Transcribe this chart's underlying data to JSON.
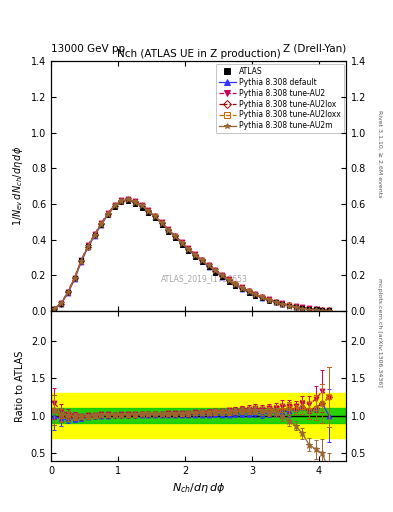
{
  "title_top_left": "13000 GeV pp",
  "title_top_right": "Z (Drell-Yan)",
  "plot_title": "Nch (ATLAS UE in Z production)",
  "xlabel": "$N_{ch}/d\\eta\\,d\\phi$",
  "ylabel_main": "$1/N_{ev}\\,dN_{ch}/d\\eta\\,d\\phi$",
  "ylabel_ratio": "Ratio to ATLAS",
  "right_label_top": "Rivet 3.1.10, ≥ 2.6M events",
  "right_label_bottom": "mcplots.cern.ch [arXiv:1306.3436]",
  "watermark": "ATLAS_2019_I1736653",
  "ylim_main": [
    0.0,
    1.4
  ],
  "ylim_ratio": [
    0.4,
    2.4
  ],
  "xlim": [
    0.0,
    4.4
  ],
  "yticks_main": [
    0.0,
    0.2,
    0.4,
    0.6,
    0.8,
    1.0,
    1.2,
    1.4
  ],
  "yticks_ratio": [
    0.5,
    1.0,
    1.5,
    2.0
  ],
  "xticks": [
    0,
    1,
    2,
    3,
    4
  ],
  "green_band": 0.1,
  "yellow_band": 0.3,
  "series": [
    {
      "label": "ATLAS",
      "color": "#000000",
      "marker": "s",
      "markersize": 3.5,
      "linestyle": "none",
      "filled": true,
      "x": [
        0.05,
        0.15,
        0.25,
        0.35,
        0.45,
        0.55,
        0.65,
        0.75,
        0.85,
        0.95,
        1.05,
        1.15,
        1.25,
        1.35,
        1.45,
        1.55,
        1.65,
        1.75,
        1.85,
        1.95,
        2.05,
        2.15,
        2.25,
        2.35,
        2.45,
        2.55,
        2.65,
        2.75,
        2.85,
        2.95,
        3.05,
        3.15,
        3.25,
        3.35,
        3.45,
        3.55,
        3.65,
        3.75,
        3.85,
        3.95,
        4.05,
        4.15
      ],
      "y": [
        0.012,
        0.042,
        0.105,
        0.185,
        0.285,
        0.365,
        0.425,
        0.485,
        0.54,
        0.585,
        0.61,
        0.615,
        0.6,
        0.58,
        0.55,
        0.52,
        0.482,
        0.445,
        0.408,
        0.372,
        0.338,
        0.305,
        0.274,
        0.245,
        0.216,
        0.19,
        0.165,
        0.143,
        0.122,
        0.103,
        0.086,
        0.072,
        0.059,
        0.048,
        0.038,
        0.03,
        0.023,
        0.017,
        0.013,
        0.009,
        0.006,
        0.004
      ],
      "yerr": [
        0.002,
        0.003,
        0.005,
        0.006,
        0.007,
        0.008,
        0.009,
        0.009,
        0.01,
        0.01,
        0.011,
        0.011,
        0.01,
        0.01,
        0.01,
        0.009,
        0.009,
        0.008,
        0.008,
        0.007,
        0.007,
        0.006,
        0.006,
        0.005,
        0.005,
        0.005,
        0.004,
        0.004,
        0.004,
        0.003,
        0.003,
        0.003,
        0.002,
        0.002,
        0.002,
        0.002,
        0.001,
        0.001,
        0.001,
        0.001,
        0.001,
        0.001
      ]
    },
    {
      "label": "Pythia 8.308 default",
      "color": "#3333ff",
      "marker": "^",
      "markersize": 3.5,
      "linestyle": "-",
      "filled": true,
      "x": [
        0.05,
        0.15,
        0.25,
        0.35,
        0.45,
        0.55,
        0.65,
        0.75,
        0.85,
        0.95,
        1.05,
        1.15,
        1.25,
        1.35,
        1.45,
        1.55,
        1.65,
        1.75,
        1.85,
        1.95,
        2.05,
        2.15,
        2.25,
        2.35,
        2.45,
        2.55,
        2.65,
        2.75,
        2.85,
        2.95,
        3.05,
        3.15,
        3.25,
        3.35,
        3.45,
        3.55,
        3.65,
        3.75,
        3.85,
        3.95,
        4.05,
        4.15
      ],
      "y": [
        0.012,
        0.04,
        0.1,
        0.178,
        0.275,
        0.358,
        0.422,
        0.485,
        0.542,
        0.588,
        0.615,
        0.622,
        0.608,
        0.588,
        0.558,
        0.528,
        0.49,
        0.452,
        0.415,
        0.378,
        0.343,
        0.31,
        0.279,
        0.249,
        0.22,
        0.193,
        0.168,
        0.146,
        0.125,
        0.106,
        0.089,
        0.074,
        0.061,
        0.05,
        0.04,
        0.032,
        0.025,
        0.019,
        0.014,
        0.01,
        0.007,
        0.004
      ],
      "yerr": [
        0.001,
        0.002,
        0.003,
        0.004,
        0.005,
        0.006,
        0.007,
        0.007,
        0.008,
        0.008,
        0.009,
        0.009,
        0.009,
        0.008,
        0.008,
        0.008,
        0.007,
        0.007,
        0.006,
        0.006,
        0.006,
        0.005,
        0.005,
        0.005,
        0.004,
        0.004,
        0.004,
        0.003,
        0.003,
        0.003,
        0.003,
        0.002,
        0.002,
        0.002,
        0.002,
        0.001,
        0.001,
        0.001,
        0.001,
        0.001,
        0.001,
        0.001
      ]
    },
    {
      "label": "Pythia 8.308 tune-AU2",
      "color": "#cc0055",
      "marker": "v",
      "markersize": 3.5,
      "linestyle": "--",
      "filled": true,
      "x": [
        0.05,
        0.15,
        0.25,
        0.35,
        0.45,
        0.55,
        0.65,
        0.75,
        0.85,
        0.95,
        1.05,
        1.15,
        1.25,
        1.35,
        1.45,
        1.55,
        1.65,
        1.75,
        1.85,
        1.95,
        2.05,
        2.15,
        2.25,
        2.35,
        2.45,
        2.55,
        2.65,
        2.75,
        2.85,
        2.95,
        3.05,
        3.15,
        3.25,
        3.35,
        3.45,
        3.55,
        3.65,
        3.75,
        3.85,
        3.95,
        4.05,
        4.15
      ],
      "y": [
        0.014,
        0.045,
        0.108,
        0.188,
        0.285,
        0.368,
        0.432,
        0.495,
        0.55,
        0.595,
        0.622,
        0.628,
        0.615,
        0.595,
        0.565,
        0.535,
        0.497,
        0.46,
        0.423,
        0.387,
        0.352,
        0.32,
        0.289,
        0.259,
        0.23,
        0.202,
        0.177,
        0.154,
        0.133,
        0.113,
        0.095,
        0.079,
        0.065,
        0.053,
        0.043,
        0.034,
        0.026,
        0.02,
        0.015,
        0.011,
        0.008,
        0.005
      ],
      "yerr": [
        0.001,
        0.002,
        0.003,
        0.004,
        0.005,
        0.006,
        0.007,
        0.007,
        0.008,
        0.008,
        0.009,
        0.009,
        0.009,
        0.008,
        0.008,
        0.008,
        0.007,
        0.007,
        0.006,
        0.006,
        0.006,
        0.005,
        0.005,
        0.005,
        0.004,
        0.004,
        0.004,
        0.003,
        0.003,
        0.003,
        0.003,
        0.002,
        0.002,
        0.002,
        0.002,
        0.001,
        0.001,
        0.001,
        0.001,
        0.001,
        0.001,
        0.001
      ]
    },
    {
      "label": "Pythia 8.308 tune-AU2lox",
      "color": "#990000",
      "marker": "D",
      "markersize": 3.0,
      "linestyle": "-.",
      "filled": false,
      "x": [
        0.05,
        0.15,
        0.25,
        0.35,
        0.45,
        0.55,
        0.65,
        0.75,
        0.85,
        0.95,
        1.05,
        1.15,
        1.25,
        1.35,
        1.45,
        1.55,
        1.65,
        1.75,
        1.85,
        1.95,
        2.05,
        2.15,
        2.25,
        2.35,
        2.45,
        2.55,
        2.65,
        2.75,
        2.85,
        2.95,
        3.05,
        3.15,
        3.25,
        3.35,
        3.45,
        3.55,
        3.65,
        3.75,
        3.85,
        3.95,
        4.05,
        4.15
      ],
      "y": [
        0.013,
        0.042,
        0.104,
        0.183,
        0.28,
        0.362,
        0.426,
        0.489,
        0.545,
        0.59,
        0.617,
        0.624,
        0.61,
        0.591,
        0.561,
        0.531,
        0.493,
        0.456,
        0.419,
        0.383,
        0.348,
        0.316,
        0.285,
        0.255,
        0.226,
        0.199,
        0.173,
        0.151,
        0.13,
        0.11,
        0.092,
        0.077,
        0.063,
        0.052,
        0.041,
        0.033,
        0.025,
        0.019,
        0.014,
        0.01,
        0.007,
        0.005
      ],
      "yerr": [
        0.001,
        0.002,
        0.003,
        0.004,
        0.005,
        0.006,
        0.007,
        0.007,
        0.008,
        0.008,
        0.009,
        0.009,
        0.009,
        0.008,
        0.008,
        0.008,
        0.007,
        0.007,
        0.006,
        0.006,
        0.006,
        0.005,
        0.005,
        0.005,
        0.004,
        0.004,
        0.004,
        0.003,
        0.003,
        0.003,
        0.003,
        0.002,
        0.002,
        0.002,
        0.002,
        0.001,
        0.001,
        0.001,
        0.001,
        0.001,
        0.001,
        0.001
      ]
    },
    {
      "label": "Pythia 8.308 tune-AU2loxx",
      "color": "#cc6600",
      "marker": "s",
      "markersize": 3.0,
      "linestyle": "--",
      "filled": false,
      "x": [
        0.05,
        0.15,
        0.25,
        0.35,
        0.45,
        0.55,
        0.65,
        0.75,
        0.85,
        0.95,
        1.05,
        1.15,
        1.25,
        1.35,
        1.45,
        1.55,
        1.65,
        1.75,
        1.85,
        1.95,
        2.05,
        2.15,
        2.25,
        2.35,
        2.45,
        2.55,
        2.65,
        2.75,
        2.85,
        2.95,
        3.05,
        3.15,
        3.25,
        3.35,
        3.45,
        3.55,
        3.65,
        3.75,
        3.85,
        3.95,
        4.05,
        4.15
      ],
      "y": [
        0.013,
        0.042,
        0.104,
        0.183,
        0.28,
        0.362,
        0.426,
        0.489,
        0.545,
        0.59,
        0.617,
        0.624,
        0.61,
        0.591,
        0.561,
        0.531,
        0.493,
        0.456,
        0.419,
        0.383,
        0.348,
        0.316,
        0.285,
        0.255,
        0.226,
        0.199,
        0.173,
        0.151,
        0.13,
        0.11,
        0.092,
        0.077,
        0.063,
        0.052,
        0.041,
        0.033,
        0.025,
        0.019,
        0.014,
        0.01,
        0.007,
        0.005
      ],
      "yerr": [
        0.001,
        0.002,
        0.003,
        0.004,
        0.005,
        0.006,
        0.007,
        0.007,
        0.008,
        0.008,
        0.009,
        0.009,
        0.009,
        0.008,
        0.008,
        0.008,
        0.007,
        0.007,
        0.006,
        0.006,
        0.006,
        0.005,
        0.005,
        0.005,
        0.004,
        0.004,
        0.004,
        0.003,
        0.003,
        0.003,
        0.003,
        0.002,
        0.002,
        0.002,
        0.002,
        0.001,
        0.001,
        0.001,
        0.001,
        0.001,
        0.001,
        0.001
      ]
    },
    {
      "label": "Pythia 8.308 tune-AU2m",
      "color": "#996633",
      "marker": "*",
      "markersize": 4.5,
      "linestyle": "-",
      "filled": true,
      "x": [
        0.05,
        0.15,
        0.25,
        0.35,
        0.45,
        0.55,
        0.65,
        0.75,
        0.85,
        0.95,
        1.05,
        1.15,
        1.25,
        1.35,
        1.45,
        1.55,
        1.65,
        1.75,
        1.85,
        1.95,
        2.05,
        2.15,
        2.25,
        2.35,
        2.45,
        2.55,
        2.65,
        2.75,
        2.85,
        2.95,
        3.05,
        3.15,
        3.25,
        3.35,
        3.45,
        3.55,
        3.65,
        3.75,
        3.85,
        3.95,
        4.05,
        4.15
      ],
      "y": [
        0.013,
        0.043,
        0.106,
        0.185,
        0.282,
        0.364,
        0.428,
        0.491,
        0.547,
        0.592,
        0.619,
        0.626,
        0.612,
        0.592,
        0.562,
        0.532,
        0.494,
        0.457,
        0.42,
        0.384,
        0.349,
        0.317,
        0.286,
        0.256,
        0.228,
        0.2,
        0.175,
        0.152,
        0.131,
        0.111,
        0.093,
        0.077,
        0.062,
        0.05,
        0.038,
        0.028,
        0.02,
        0.013,
        0.008,
        0.005,
        0.003,
        0.001
      ],
      "yerr": [
        0.001,
        0.002,
        0.003,
        0.004,
        0.005,
        0.006,
        0.007,
        0.007,
        0.008,
        0.008,
        0.009,
        0.009,
        0.009,
        0.008,
        0.008,
        0.008,
        0.007,
        0.007,
        0.006,
        0.006,
        0.006,
        0.005,
        0.005,
        0.005,
        0.004,
        0.004,
        0.004,
        0.003,
        0.003,
        0.003,
        0.003,
        0.002,
        0.002,
        0.002,
        0.002,
        0.001,
        0.001,
        0.001,
        0.001,
        0.001,
        0.001,
        0.001
      ]
    }
  ]
}
